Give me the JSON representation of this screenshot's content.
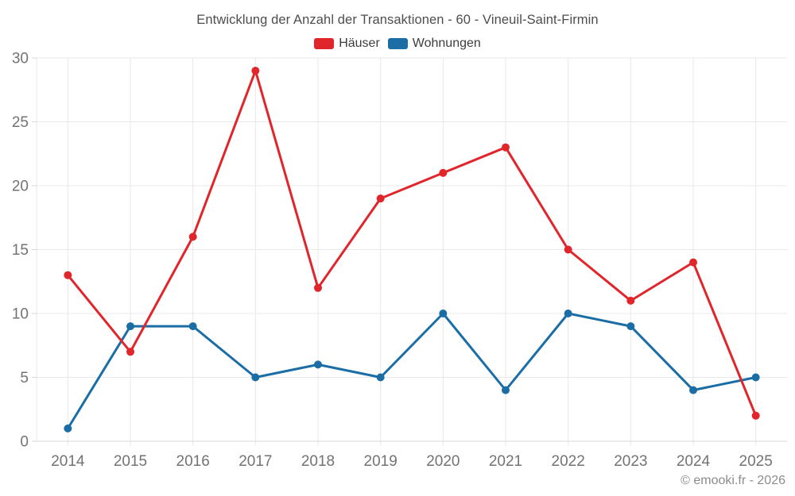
{
  "page": {
    "footer": "© emooki.fr - 2026"
  },
  "chart_data": {
    "type": "line",
    "title": "Entwicklung der Anzahl der Transaktionen - 60 - Vineuil-Saint-Firmin",
    "categories": [
      "2014",
      "2015",
      "2016",
      "2017",
      "2018",
      "2019",
      "2020",
      "2021",
      "2022",
      "2023",
      "2024",
      "2025"
    ],
    "series": [
      {
        "name": "Häuser",
        "color": "#e0252b",
        "values": [
          13,
          7,
          16,
          29,
          12,
          19,
          21,
          23,
          15,
          11,
          14,
          2
        ]
      },
      {
        "name": "Wohnungen",
        "color": "#1b6ea5",
        "values": [
          1,
          9,
          9,
          5,
          6,
          5,
          10,
          4,
          10,
          9,
          4,
          5
        ]
      }
    ],
    "xlabel": "",
    "ylabel": "",
    "ylim": [
      0,
      30
    ],
    "yticks": [
      0,
      5,
      10,
      15,
      20,
      25,
      30
    ],
    "grid": true,
    "legend_position": "top",
    "colors": {
      "grid_line": "#e8e8e8",
      "axis_line": "#d9d9d9",
      "tick_label": "#737373",
      "title_text": "#4d4d4d",
      "legend_text": "#3d3d3d",
      "footer_text": "#8c8c8c"
    }
  }
}
